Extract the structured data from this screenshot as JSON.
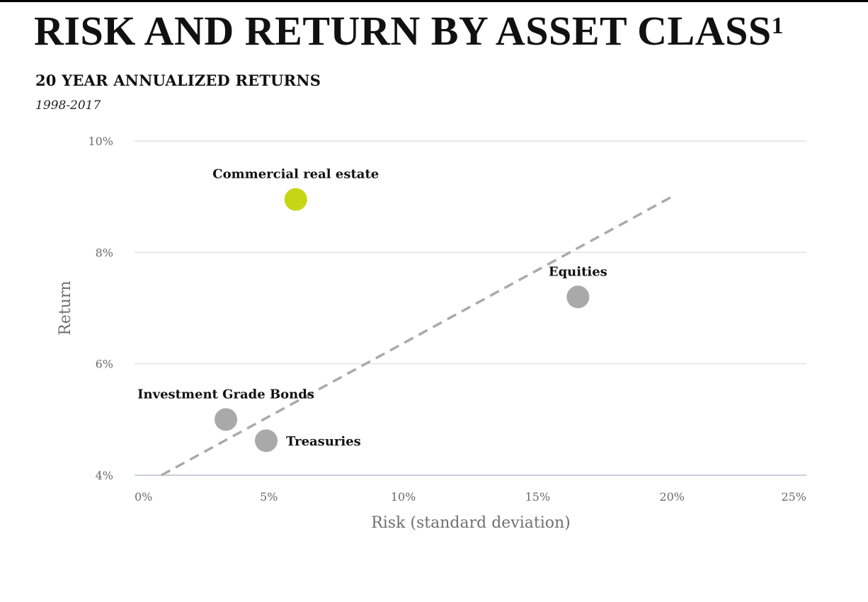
{
  "title": "RISK AND RETURN BY ASSET CLASS",
  "title_superscript": "1",
  "subtitle": "20 YEAR ANNUALIZED RETURNS",
  "period": "1998-2017",
  "chart_data": {
    "type": "scatter",
    "xlabel": "Risk (standard deviation)",
    "ylabel": "Return",
    "xlim": [
      0,
      25
    ],
    "ylim": [
      4,
      10
    ],
    "x_ticks": [
      0,
      5,
      10,
      15,
      20,
      25
    ],
    "x_tick_labels": [
      "0%",
      "5%",
      "10%",
      "15%",
      "20%",
      "25%"
    ],
    "y_ticks": [
      4,
      6,
      8,
      10
    ],
    "y_tick_labels": [
      "4%",
      "6%",
      "8%",
      "10%"
    ],
    "grid": "horizontal",
    "points": [
      {
        "label": "Commercial real estate",
        "x": 6.0,
        "y": 8.95,
        "color": "#c6d615",
        "label_position": "above"
      },
      {
        "label": "Equities",
        "x": 16.5,
        "y": 7.2,
        "color": "#a9a9a9",
        "label_position": "above"
      },
      {
        "label": "Investment Grade Bonds",
        "x": 3.4,
        "y": 5.0,
        "color": "#a9a9a9",
        "label_position": "above"
      },
      {
        "label": "Treasuries",
        "x": 4.9,
        "y": 4.62,
        "color": "#a9a9a9",
        "label_position": "right"
      }
    ],
    "trendline": {
      "x": [
        1.0,
        20.0
      ],
      "y": [
        4.0,
        9.0
      ],
      "style": "dashed",
      "color": "#aaaaaa"
    }
  }
}
